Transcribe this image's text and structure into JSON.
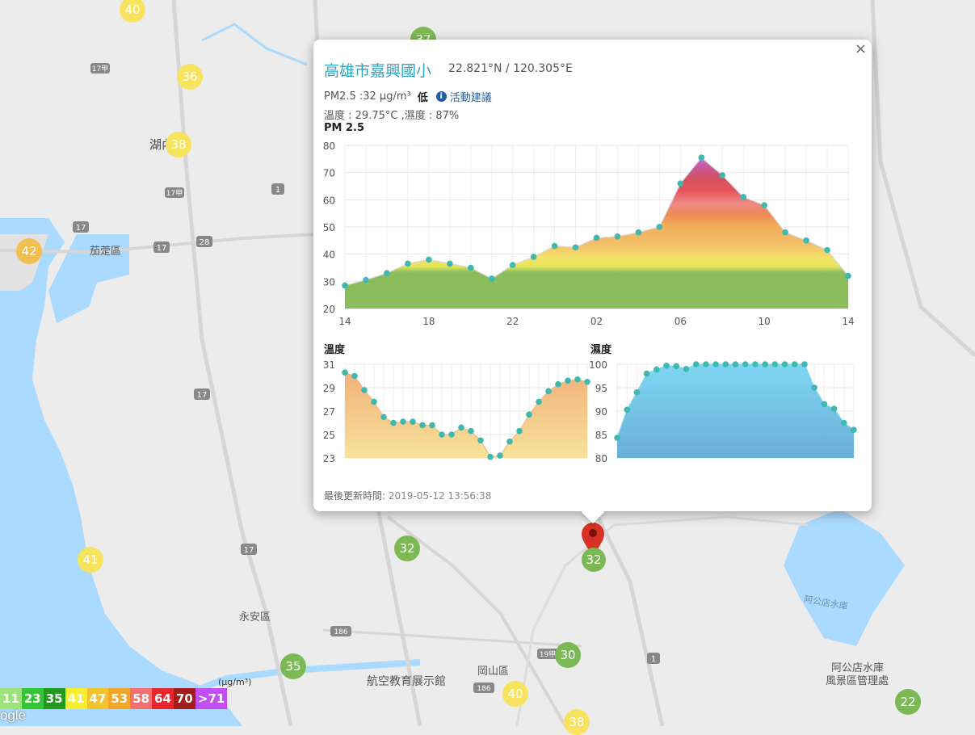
{
  "map": {
    "place_labels": [
      {
        "id": "hunei",
        "text": "湖內"
      },
      {
        "id": "qieding",
        "text": "茄萣區"
      },
      {
        "id": "yongan",
        "text": "永安區"
      },
      {
        "id": "gangshan",
        "text": "岡山區"
      },
      {
        "id": "aviation",
        "text": "航空教育展示館"
      },
      {
        "id": "agongdian",
        "text": "阿公店水庫"
      },
      {
        "id": "scenic1",
        "text": "阿公店水庫"
      },
      {
        "id": "scenic2",
        "text": "風景區管理處"
      }
    ],
    "road_numbers": [
      "17甲",
      "17",
      "17甲",
      "1",
      "17",
      "28",
      "17",
      "17",
      "186",
      "186",
      "19甲",
      "1"
    ],
    "markers": [
      {
        "id": "m1",
        "value": "40",
        "level": "yellow"
      },
      {
        "id": "m2",
        "value": "37",
        "level": "green"
      },
      {
        "id": "m3",
        "value": "36",
        "level": "yellow"
      },
      {
        "id": "m4",
        "value": "38",
        "level": "yellow"
      },
      {
        "id": "m5",
        "value": "42",
        "level": "orange"
      },
      {
        "id": "m6",
        "value": "41",
        "level": "yellow"
      },
      {
        "id": "m7",
        "value": "32",
        "level": "green"
      },
      {
        "id": "m8",
        "value": "32",
        "level": "green"
      },
      {
        "id": "m9",
        "value": "35",
        "level": "green"
      },
      {
        "id": "m10",
        "value": "30",
        "level": "green"
      },
      {
        "id": "m11",
        "value": "40",
        "level": "yellow"
      },
      {
        "id": "m12",
        "value": "38",
        "level": "yellow"
      },
      {
        "id": "m13",
        "value": "22",
        "level": "green"
      }
    ]
  },
  "popup": {
    "close_label": "×",
    "station_name": "高雄市嘉興國小",
    "coordinates": "22.821°N / 120.305°E",
    "pm_text": "PM2.5 :32 μg/m³",
    "pm_level": "低",
    "info_icon": "i",
    "advice_link": "活動建議",
    "weather_text": "溫度 : 29.75°C ,濕度 : 87%",
    "update_label": "最後更新時間:",
    "update_time": "2019-05-12 13:56:38"
  },
  "legend": {
    "unit": "(μg/m³)",
    "items": [
      {
        "label": "11",
        "color": "#9be37a"
      },
      {
        "label": "23",
        "color": "#33c738"
      },
      {
        "label": "35",
        "color": "#229a1f"
      },
      {
        "label": "41",
        "color": "#f6ee2e"
      },
      {
        "label": "47",
        "color": "#f3c22c"
      },
      {
        "label": "53",
        "color": "#f3a52a"
      },
      {
        "label": "58",
        "color": "#f27070"
      },
      {
        "label": "64",
        "color": "#e8262e"
      },
      {
        "label": "70",
        "color": "#a41b1b"
      },
      {
        "label": ">71",
        "color": "#c14ff4"
      }
    ],
    "logo_text": "ogle"
  },
  "chart_data": [
    {
      "type": "area",
      "title": "PM 2.5",
      "x_ticks": [
        "14",
        "18",
        "22",
        "02",
        "06",
        "10",
        "14"
      ],
      "y_ticks": [
        "80",
        "70",
        "60",
        "50",
        "40",
        "30",
        "20"
      ],
      "ylim": [
        20,
        80
      ],
      "values": [
        28.5,
        30.5,
        33,
        36.5,
        38,
        36.5,
        35,
        31,
        36,
        39,
        43,
        42.5,
        46,
        46.5,
        48,
        50,
        66,
        75.5,
        69,
        61,
        58,
        48,
        45,
        41.5,
        32
      ],
      "grid": true
    },
    {
      "type": "area",
      "title": "溫度",
      "y_ticks": [
        "31",
        "29",
        "27",
        "25",
        "23"
      ],
      "ylim": [
        23,
        31
      ],
      "values": [
        30.3,
        30,
        28.8,
        27.8,
        26.5,
        26,
        26.1,
        26.1,
        25.8,
        25.8,
        25,
        25,
        25.6,
        25.3,
        24.5,
        23.1,
        23.2,
        24.4,
        25.3,
        26.7,
        27.8,
        28.7,
        29.3,
        29.6,
        29.7,
        29.5
      ],
      "grid": true
    },
    {
      "type": "area",
      "title": "濕度",
      "y_ticks": [
        "100",
        "95",
        "90",
        "85",
        "80"
      ],
      "ylim": [
        80,
        100
      ],
      "values": [
        84.3,
        90.3,
        94,
        98,
        98.9,
        99.7,
        99.6,
        99,
        100,
        100,
        100,
        100,
        100,
        100,
        100,
        100,
        100,
        100,
        100,
        100,
        95,
        91.5,
        90.5,
        87.5,
        86
      ],
      "grid": true
    }
  ]
}
